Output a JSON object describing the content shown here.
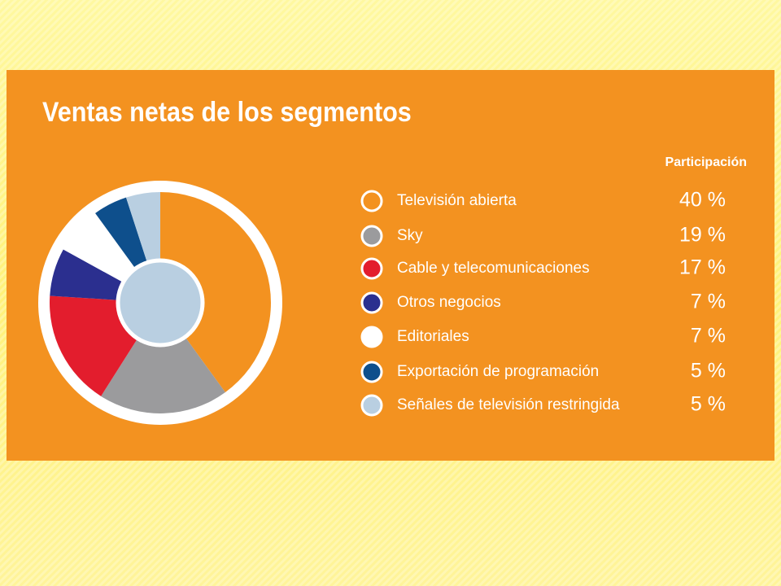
{
  "chart_data": {
    "type": "pie",
    "title": "Ventas netas de los segmentos",
    "value_header": "Participación",
    "categories": [
      "Televisión abierta",
      "Sky",
      "Cable y telecomunicaciones",
      "Otros negocios",
      "Editoriales",
      "Exportación de programación",
      "Señales de televisión restringida"
    ],
    "values": [
      40,
      19,
      17,
      7,
      7,
      5,
      5
    ],
    "value_labels": [
      "40 %",
      "19 %",
      "17 %",
      "7 %",
      "7 %",
      "5 %",
      "5 %"
    ],
    "colors": [
      "#f39220",
      "#9b9b9d",
      "#e31d2d",
      "#2b2f8f",
      "#ffffff",
      "#0e4f8c",
      "#b9cfe1"
    ]
  }
}
